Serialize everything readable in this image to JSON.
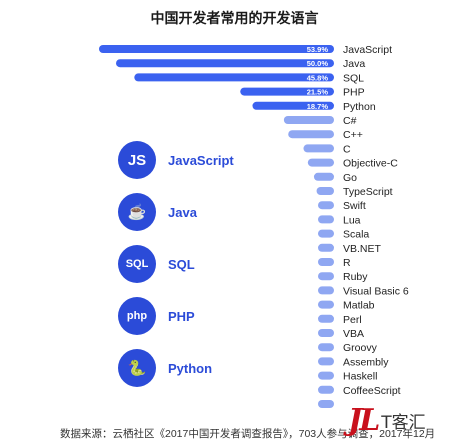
{
  "chart_data": {
    "type": "bar",
    "orientation": "horizontal",
    "title": "中国开发者常用的开发语言",
    "categories": [
      "JavaScript",
      "Java",
      "SQL",
      "PHP",
      "Python",
      "C#",
      "C++",
      "C",
      "Objective-C",
      "Go",
      "TypeScript",
      "Swift",
      "Lua",
      "Scala",
      "VB.NET",
      "R",
      "Ruby",
      "Visual Basic 6",
      "Matlab",
      "Perl",
      "VBA",
      "Groovy",
      "Assembly",
      "Haskell",
      "CoffeeScript",
      ""
    ],
    "values": [
      53.9,
      50.0,
      45.8,
      21.5,
      18.7,
      11.5,
      10.5,
      7.0,
      6.0,
      4.6,
      4.0,
      3.4,
      3.0,
      2.8,
      2.7,
      2.6,
      2.5,
      2.4,
      2.3,
      2.3,
      2.2,
      2.0,
      1.9,
      1.8,
      1.7,
      1.6
    ],
    "value_labels": [
      "53.9%",
      "50.0%",
      "45.8%",
      "21.5%",
      "18.7%",
      "",
      "",
      "",
      "",
      "",
      "",
      "",
      "",
      "",
      "",
      "",
      "",
      "",
      "",
      "",
      "",
      "",
      "",
      "",
      "",
      ""
    ],
    "xlim": [
      0,
      60
    ],
    "bar_color": "#2b4bd8",
    "highlight_color": "#3b62f0",
    "minor_color": "#8fa7f2",
    "grid": false,
    "legend": "none"
  },
  "top_languages": [
    {
      "icon": "js-icon",
      "badge": "JS",
      "name": "JavaScript"
    },
    {
      "icon": "java-cup-icon",
      "badge": "☕",
      "name": "Java"
    },
    {
      "icon": "sql-icon",
      "badge": "SQL",
      "name": "SQL"
    },
    {
      "icon": "php-icon",
      "badge": "php",
      "name": "PHP"
    },
    {
      "icon": "python-icon",
      "badge": "🐍",
      "name": "Python"
    }
  ],
  "source_note": "数据来源：云栖社区《2017中国开发者调查报告》，703人参与调查，2017年12月",
  "watermark": {
    "script": "JL",
    "text": "T客汇"
  }
}
